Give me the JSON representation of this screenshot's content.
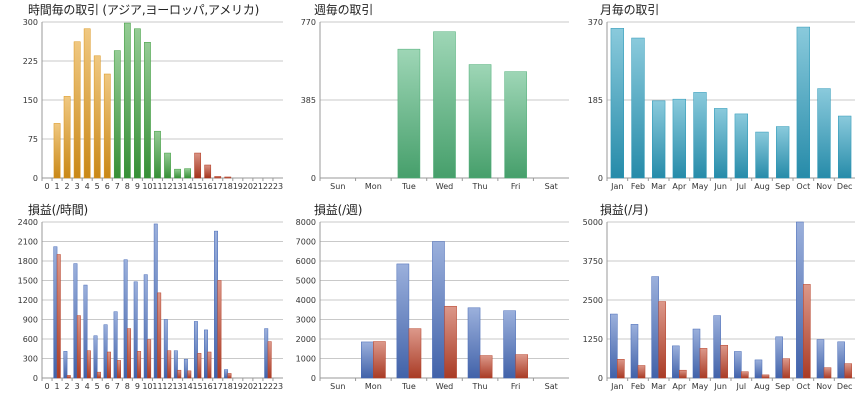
{
  "chart_data": [
    {
      "id": "hourly_trades",
      "type": "bar",
      "title": "時間毎の取引 (アジア,ヨーロッパ,アメリカ)",
      "categories": [
        "0",
        "1",
        "2",
        "3",
        "4",
        "5",
        "6",
        "7",
        "8",
        "9",
        "10",
        "11",
        "12",
        "13",
        "14",
        "15",
        "16",
        "17",
        "18",
        "19",
        "20",
        "21",
        "22",
        "23"
      ],
      "series": [
        {
          "values": [
            0,
            105,
            157,
            262,
            287,
            235,
            200,
            245,
            298,
            287,
            261,
            90,
            48,
            17,
            18,
            48,
            25,
            3,
            2,
            0,
            0,
            0,
            0,
            0
          ]
        }
      ],
      "bar_colors": [
        "#e49b1a",
        "#e49b1a",
        "#e49b1a",
        "#e49b1a",
        "#e49b1a",
        "#e49b1a",
        "#e49b1a",
        "#3fa33f",
        "#3fa33f",
        "#3fa33f",
        "#3fa33f",
        "#3fa33f",
        "#3fa33f",
        "#3fa33f",
        "#3fa33f",
        "#b93a20",
        "#b93a20",
        "#b93a20",
        "#b93a20",
        "#b93a20",
        "#b93a20",
        "#b93a20",
        "#b93a20",
        "#b93a20"
      ],
      "y_ticks": [
        "0",
        "75",
        "150",
        "225",
        "300"
      ],
      "ylim": [
        0,
        300
      ],
      "grid": true
    },
    {
      "id": "weekly_trades",
      "type": "bar",
      "title": "週毎の取引",
      "categories": [
        "Sun",
        "Mon",
        "Tue",
        "Wed",
        "Thu",
        "Fri",
        "Sat"
      ],
      "series": [
        {
          "values": [
            0,
            0,
            636,
            722,
            560,
            525,
            0
          ]
        }
      ],
      "bar_colors": [
        "#4fb57a"
      ],
      "y_ticks": [
        "0",
        "385",
        "770"
      ],
      "ylim": [
        0,
        770
      ],
      "grid": true
    },
    {
      "id": "monthly_trades",
      "type": "bar",
      "title": "月毎の取引",
      "categories": [
        "Jan",
        "Feb",
        "Mar",
        "Apr",
        "May",
        "Jun",
        "Jul",
        "Aug",
        "Sep",
        "Oct",
        "Nov",
        "Dec"
      ],
      "series": [
        {
          "values": [
            355,
            332,
            183,
            187,
            203,
            165,
            152,
            109,
            122,
            358,
            212,
            147
          ]
        }
      ],
      "bar_colors": [
        "#2b9ec0"
      ],
      "y_ticks": [
        "0",
        "185",
        "370"
      ],
      "ylim": [
        0,
        370
      ],
      "grid": true
    },
    {
      "id": "hourly_pnl",
      "type": "bar",
      "title": "損益(/時間)",
      "categories": [
        "0",
        "1",
        "2",
        "3",
        "4",
        "5",
        "6",
        "7",
        "8",
        "9",
        "10",
        "11",
        "12",
        "13",
        "14",
        "15",
        "16",
        "17",
        "18",
        "19",
        "20",
        "21",
        "22",
        "23"
      ],
      "series": [
        {
          "values": [
            0,
            2020,
            410,
            1760,
            1430,
            650,
            820,
            1020,
            1820,
            1480,
            1590,
            2370,
            900,
            420,
            290,
            870,
            740,
            2260,
            130,
            0,
            0,
            0,
            760,
            0
          ]
        },
        {
          "values": [
            0,
            1900,
            40,
            960,
            420,
            90,
            400,
            270,
            760,
            410,
            590,
            1310,
            420,
            120,
            110,
            380,
            400,
            1500,
            70,
            0,
            0,
            0,
            560,
            0
          ]
        }
      ],
      "bar_colors": [
        "#4a6fc0",
        "#c0432a"
      ],
      "y_ticks": [
        "0",
        "300",
        "600",
        "900",
        "1200",
        "1500",
        "1800",
        "2100",
        "2400"
      ],
      "ylim": [
        0,
        2400
      ],
      "grid": true
    },
    {
      "id": "weekly_pnl",
      "type": "bar",
      "title": "損益(/週)",
      "categories": [
        "Sun",
        "Mon",
        "Tue",
        "Wed",
        "Thu",
        "Fri",
        "Sat"
      ],
      "series": [
        {
          "values": [
            0,
            1850,
            5850,
            7000,
            3600,
            3450,
            0
          ]
        },
        {
          "values": [
            0,
            1870,
            2530,
            3680,
            1150,
            1200,
            0
          ]
        }
      ],
      "bar_colors": [
        "#4a6fc0",
        "#c0432a"
      ],
      "y_ticks": [
        "0",
        "1000",
        "2000",
        "3000",
        "4000",
        "5000",
        "6000",
        "7000",
        "8000"
      ],
      "ylim": [
        0,
        8000
      ],
      "grid": true
    },
    {
      "id": "monthly_pnl",
      "type": "bar",
      "title": "損益(/月)",
      "categories": [
        "Jan",
        "Feb",
        "Mar",
        "Apr",
        "May",
        "Jun",
        "Jul",
        "Aug",
        "Sep",
        "Oct",
        "Nov",
        "Dec"
      ],
      "series": [
        {
          "values": [
            2050,
            1720,
            3250,
            1030,
            1570,
            2000,
            850,
            580,
            1320,
            5000,
            1230,
            1160
          ]
        },
        {
          "values": [
            600,
            400,
            2450,
            250,
            950,
            1050,
            200,
            100,
            620,
            3000,
            330,
            460
          ]
        }
      ],
      "bar_colors": [
        "#4a6fc0",
        "#c0432a"
      ],
      "y_ticks": [
        "0",
        "1250",
        "2500",
        "3750",
        "5000"
      ],
      "ylim": [
        0,
        5000
      ],
      "grid": true
    }
  ]
}
